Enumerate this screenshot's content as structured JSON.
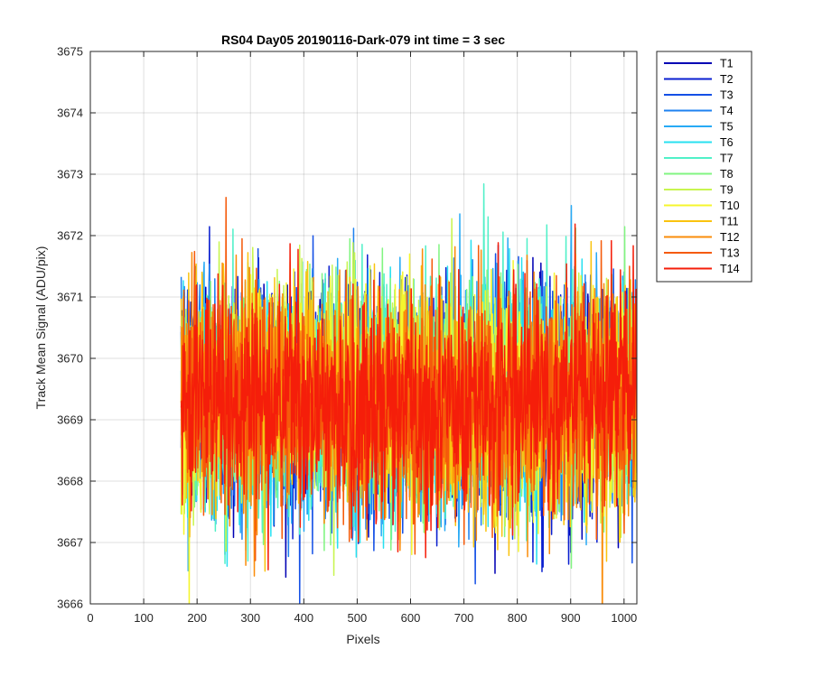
{
  "chart_data": {
    "type": "line",
    "title": "RS04 Day05 20190116-Dark-079 int time = 3 sec",
    "xlabel": "Pixels",
    "ylabel": "Track Mean Signal (ADU/pix)",
    "xlim": [
      0,
      1024
    ],
    "ylim": [
      3666,
      3675
    ],
    "xticks": [
      0,
      100,
      200,
      300,
      400,
      500,
      600,
      700,
      800,
      900,
      1000
    ],
    "yticks": [
      3666,
      3667,
      3668,
      3669,
      3670,
      3671,
      3672,
      3673,
      3674,
      3675
    ],
    "grid": true,
    "legend_position": "outside-top-right",
    "n_points": 1024,
    "mean": 3670.2,
    "noise_sd": 0.9,
    "series": [
      {
        "name": "T1",
        "color": "#0000B4"
      },
      {
        "name": "T2",
        "color": "#0A1FD0"
      },
      {
        "name": "T3",
        "color": "#1450E6"
      },
      {
        "name": "T4",
        "color": "#1E82F0"
      },
      {
        "name": "T5",
        "color": "#28AAF5"
      },
      {
        "name": "T6",
        "color": "#28E0F0"
      },
      {
        "name": "T7",
        "color": "#50F0C8"
      },
      {
        "name": "T8",
        "color": "#82F582"
      },
      {
        "name": "T9",
        "color": "#C8F550"
      },
      {
        "name": "T10",
        "color": "#F5F52D"
      },
      {
        "name": "T11",
        "color": "#FAC30F"
      },
      {
        "name": "T12",
        "color": "#FA8C0A"
      },
      {
        "name": "T13",
        "color": "#F55A0A"
      },
      {
        "name": "T14",
        "color": "#F51E0A"
      }
    ]
  }
}
